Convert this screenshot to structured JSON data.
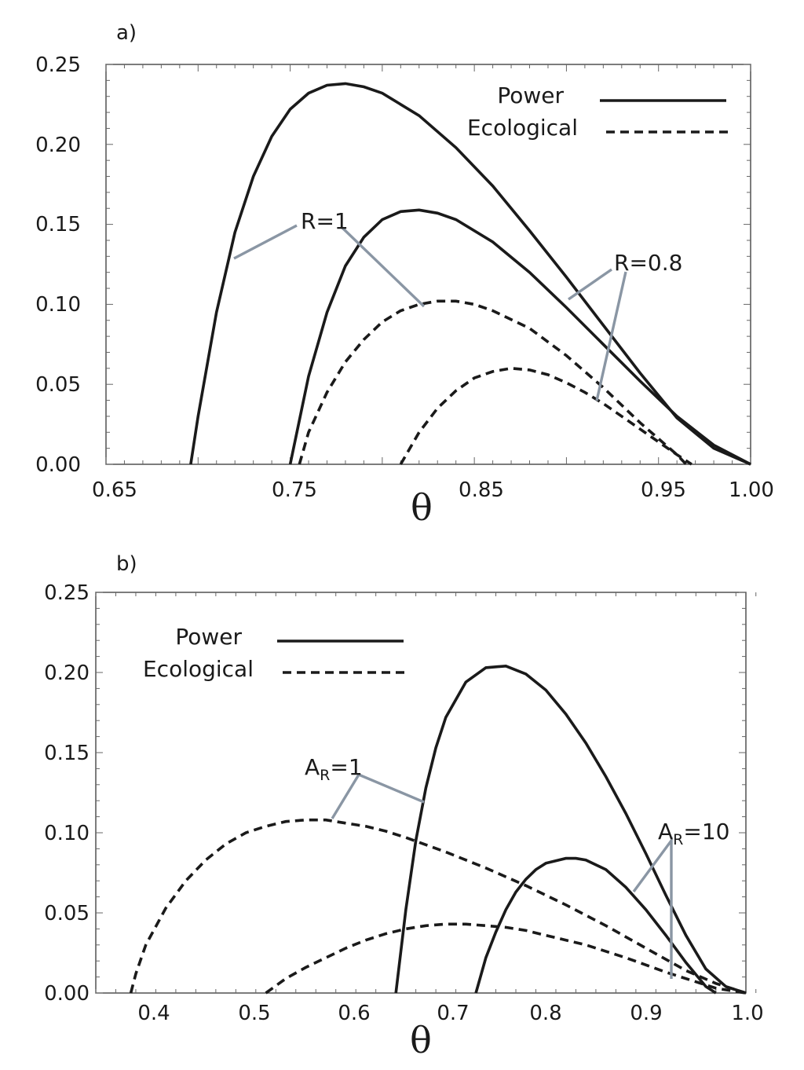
{
  "chart_data": [
    {
      "type": "line",
      "panel_label": "a)",
      "xlabel": "θ",
      "ylabel": "",
      "xlim": [
        0.65,
        1.0
      ],
      "ylim": [
        0,
        0.25
      ],
      "x_ticks": [
        "0.65",
        "0.75",
        "0.85",
        "0.95",
        "1.00"
      ],
      "y_ticks": [
        "0.00",
        "0.05",
        "0.10",
        "0.15",
        "0.20",
        "0.25"
      ],
      "legend": {
        "position": "top-right",
        "entries": [
          "Power",
          "Ecological"
        ]
      },
      "annotations": [
        {
          "text": "R=1",
          "sub": ""
        },
        {
          "text": "R=0.8",
          "sub": ""
        }
      ],
      "series": [
        {
          "name": "Power, R=1",
          "style": "solid",
          "x": [
            0.696,
            0.7,
            0.71,
            0.72,
            0.73,
            0.74,
            0.75,
            0.76,
            0.77,
            0.78,
            0.79,
            0.8,
            0.82,
            0.84,
            0.86,
            0.88,
            0.9,
            0.92,
            0.94,
            0.96,
            0.98,
            1.0
          ],
          "y": [
            0.0,
            0.03,
            0.095,
            0.145,
            0.18,
            0.205,
            0.222,
            0.232,
            0.237,
            0.238,
            0.236,
            0.232,
            0.218,
            0.198,
            0.174,
            0.146,
            0.117,
            0.087,
            0.057,
            0.029,
            0.01,
            0.0
          ]
        },
        {
          "name": "Power, R=0.8",
          "style": "solid",
          "x": [
            0.75,
            0.76,
            0.77,
            0.78,
            0.79,
            0.8,
            0.81,
            0.82,
            0.83,
            0.84,
            0.86,
            0.88,
            0.9,
            0.92,
            0.94,
            0.96,
            0.98,
            1.0
          ],
          "y": [
            0.0,
            0.055,
            0.095,
            0.124,
            0.142,
            0.153,
            0.158,
            0.159,
            0.157,
            0.153,
            0.139,
            0.12,
            0.098,
            0.075,
            0.052,
            0.03,
            0.012,
            0.0
          ]
        },
        {
          "name": "Ecological, R=1",
          "style": "dashed",
          "x": [
            0.755,
            0.76,
            0.77,
            0.78,
            0.79,
            0.8,
            0.81,
            0.82,
            0.83,
            0.84,
            0.85,
            0.86,
            0.88,
            0.9,
            0.92,
            0.94,
            0.96,
            0.965
          ],
          "y": [
            0.0,
            0.02,
            0.045,
            0.064,
            0.078,
            0.089,
            0.096,
            0.1,
            0.102,
            0.102,
            0.1,
            0.096,
            0.085,
            0.068,
            0.048,
            0.026,
            0.006,
            0.0
          ]
        },
        {
          "name": "Ecological, R=0.8",
          "style": "dashed",
          "x": [
            0.81,
            0.82,
            0.83,
            0.84,
            0.85,
            0.86,
            0.87,
            0.88,
            0.89,
            0.9,
            0.91,
            0.92,
            0.94,
            0.96,
            0.968
          ],
          "y": [
            0.0,
            0.02,
            0.035,
            0.046,
            0.054,
            0.058,
            0.06,
            0.059,
            0.056,
            0.051,
            0.045,
            0.038,
            0.022,
            0.006,
            0.0
          ]
        }
      ]
    },
    {
      "type": "line",
      "panel_label": "b)",
      "xlabel": "θ",
      "ylabel": "",
      "xlim": [
        0.35,
        1.0
      ],
      "ylim": [
        0,
        0.25
      ],
      "x_ticks": [
        "0.4",
        "0.5",
        "0.6",
        "0.7",
        "0.8",
        "0.9",
        "1.0"
      ],
      "y_ticks": [
        "0.00",
        "0.05",
        "0.10",
        "0.15",
        "0.20",
        "0.25"
      ],
      "legend": {
        "position": "top-left",
        "entries": [
          "Power",
          "Ecological"
        ]
      },
      "annotations": [
        {
          "text": "A",
          "sub": "R",
          "suffix": "=1"
        },
        {
          "text": "A",
          "sub": "R",
          "suffix": "=10"
        }
      ],
      "series": [
        {
          "name": "Power, A_R=1",
          "style": "solid",
          "x": [
            0.65,
            0.66,
            0.67,
            0.68,
            0.69,
            0.7,
            0.72,
            0.74,
            0.76,
            0.78,
            0.8,
            0.82,
            0.84,
            0.86,
            0.88,
            0.9,
            0.92,
            0.94,
            0.96,
            0.98,
            1.0
          ],
          "y": [
            0.0,
            0.052,
            0.095,
            0.128,
            0.153,
            0.172,
            0.194,
            0.203,
            0.204,
            0.199,
            0.189,
            0.174,
            0.156,
            0.135,
            0.112,
            0.087,
            0.061,
            0.036,
            0.015,
            0.004,
            0.0
          ]
        },
        {
          "name": "Power, A_R=10",
          "style": "solid",
          "x": [
            0.73,
            0.74,
            0.75,
            0.76,
            0.77,
            0.78,
            0.79,
            0.8,
            0.82,
            0.83,
            0.84,
            0.86,
            0.88,
            0.9,
            0.92,
            0.94,
            0.96,
            0.97
          ],
          "y": [
            0.0,
            0.022,
            0.038,
            0.052,
            0.063,
            0.071,
            0.077,
            0.081,
            0.084,
            0.084,
            0.083,
            0.077,
            0.066,
            0.052,
            0.036,
            0.019,
            0.004,
            0.0
          ]
        },
        {
          "name": "Ecological, A_R=1",
          "style": "dashed",
          "x": [
            0.385,
            0.39,
            0.4,
            0.42,
            0.44,
            0.46,
            0.48,
            0.5,
            0.52,
            0.54,
            0.56,
            0.58,
            0.6,
            0.62,
            0.64,
            0.66,
            0.7,
            0.74,
            0.78,
            0.82,
            0.86,
            0.9,
            0.94,
            0.97,
            1.0
          ],
          "y": [
            0.0,
            0.012,
            0.03,
            0.053,
            0.07,
            0.083,
            0.093,
            0.1,
            0.104,
            0.107,
            0.108,
            0.108,
            0.106,
            0.104,
            0.101,
            0.097,
            0.088,
            0.078,
            0.067,
            0.055,
            0.042,
            0.028,
            0.014,
            0.006,
            0.0
          ]
        },
        {
          "name": "Ecological, A_R=10",
          "style": "dashed",
          "x": [
            0.52,
            0.54,
            0.56,
            0.58,
            0.6,
            0.62,
            0.64,
            0.66,
            0.68,
            0.7,
            0.72,
            0.74,
            0.76,
            0.78,
            0.8,
            0.84,
            0.88,
            0.92,
            0.95,
            0.97,
            1.0
          ],
          "y": [
            0.0,
            0.009,
            0.016,
            0.022,
            0.028,
            0.033,
            0.037,
            0.04,
            0.042,
            0.043,
            0.043,
            0.042,
            0.041,
            0.039,
            0.036,
            0.03,
            0.022,
            0.013,
            0.007,
            0.003,
            0.0
          ]
        }
      ]
    }
  ]
}
